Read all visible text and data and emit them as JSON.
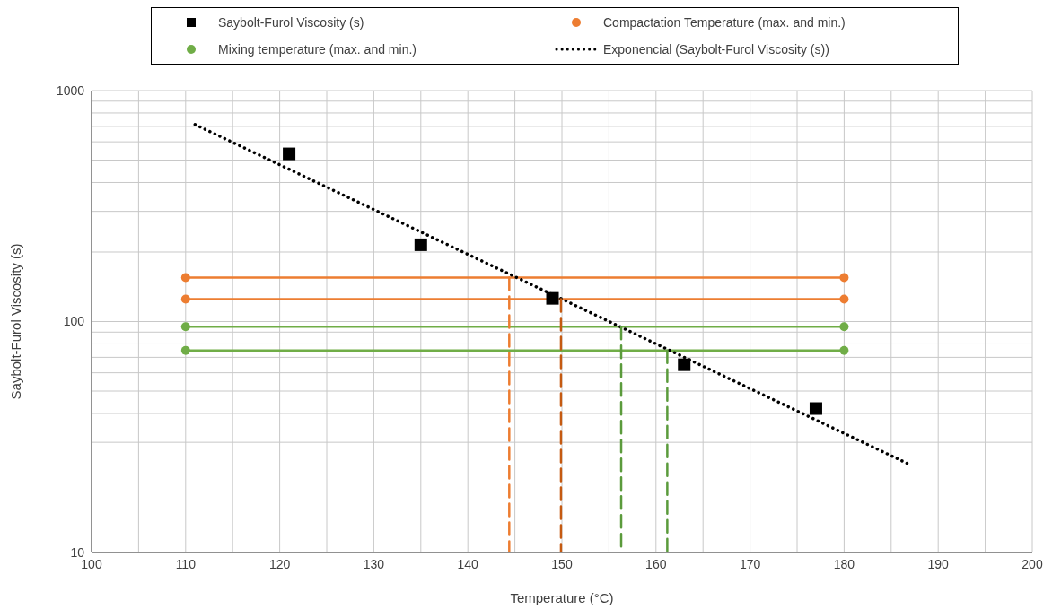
{
  "chart_data": {
    "type": "scatter",
    "xlabel": "Temperature (°C)",
    "ylabel": "Saybolt-Furol Viscosity (s)",
    "log": "y",
    "grid": true,
    "legend": "top",
    "xlim": [
      100,
      200
    ],
    "xticks": [
      100,
      110,
      120,
      130,
      140,
      150,
      160,
      170,
      180,
      190,
      200
    ],
    "ylim": [
      10,
      1000
    ],
    "yticks": [
      10,
      100,
      1000
    ],
    "series": [
      {
        "name": "Saybolt-Furol Viscosity (s)",
        "marker": "square",
        "color": "#000000",
        "x": [
          121,
          135,
          149,
          163,
          177
        ],
        "values": [
          532,
          215,
          126,
          65,
          42
        ]
      },
      {
        "name": "Compactation Temperature (max. and min.)",
        "type": "line",
        "marker": "circle",
        "line_style": "solid",
        "color": "#ed7d31",
        "x": [
          110,
          180
        ],
        "values": [
          155,
          155
        ]
      },
      {
        "type": "line",
        "marker": "circle",
        "line_style": "solid",
        "color": "#ed7d31",
        "x": [
          110,
          180
        ],
        "values": [
          125,
          125
        ]
      },
      {
        "name": "Mixing temperature (max. and min.)",
        "type": "line",
        "marker": "circle",
        "line_style": "solid",
        "color": "#70ad47",
        "x": [
          110,
          180
        ],
        "values": [
          95,
          95
        ]
      },
      {
        "type": "line",
        "marker": "circle",
        "line_style": "solid",
        "color": "#70ad47",
        "x": [
          110,
          180
        ],
        "values": [
          75,
          75
        ]
      },
      {
        "name": "Exponencial (Saybolt-Furol Viscosity (s))",
        "type": "line",
        "marker": "none",
        "line_style": "dotted",
        "color": "#000000",
        "x": [
          111,
          187
        ],
        "values": [
          713,
          24
        ]
      },
      {
        "type": "line",
        "marker": "none",
        "line_style": "dashed",
        "color": "#ed7d31",
        "x": [
          144.4,
          144.4
        ],
        "values": [
          155,
          10
        ]
      },
      {
        "type": "line",
        "marker": "none",
        "line_style": "dashed",
        "color": "#c55a11",
        "x": [
          149.9,
          149.9
        ],
        "values": [
          125,
          10
        ]
      },
      {
        "type": "line",
        "marker": "none",
        "line_style": "dashed",
        "color": "#5b9b3c",
        "x": [
          156.3,
          156.3
        ],
        "values": [
          95,
          10
        ]
      },
      {
        "type": "line",
        "marker": "none",
        "line_style": "dashed",
        "color": "#5b9b3c",
        "x": [
          161.2,
          161.2
        ],
        "values": [
          75,
          10
        ]
      }
    ]
  }
}
